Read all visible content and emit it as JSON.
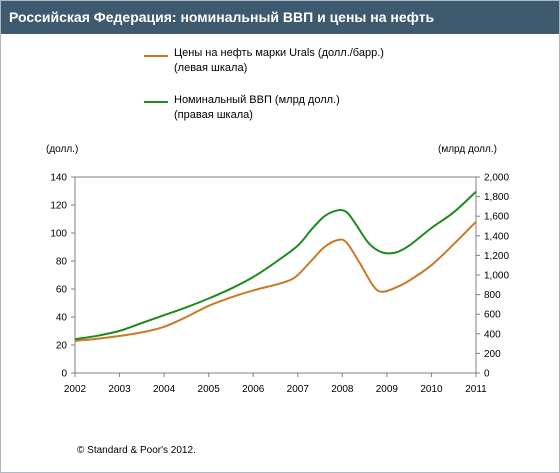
{
  "header": {
    "title": "Российская Федерация: номинальный ВВП и цены на нефть"
  },
  "legend": [
    {
      "line1": "Цены на нефть марки Urals (долл./барр.)",
      "line2": "(левая шкала)",
      "color": "#c87a29"
    },
    {
      "line1": "Номинальный ВВП (млрд долл.)",
      "line2": "(правая шкала)",
      "color": "#1f8a20"
    }
  ],
  "units": {
    "left": "(долл.)",
    "right": "(млрд долл.)"
  },
  "footer": {
    "copyright": "© Standard & Poor's 2012."
  },
  "chart_data": {
    "type": "line",
    "x_ticks": [
      "2002",
      "2003",
      "2004",
      "2005",
      "2006",
      "2007",
      "2008",
      "2009",
      "2010",
      "2011"
    ],
    "y_left": {
      "min": 0,
      "max": 140,
      "ticks": [
        "0",
        "20",
        "40",
        "60",
        "80",
        "100",
        "120",
        "140"
      ]
    },
    "y_right": {
      "min": 0,
      "max": 2000,
      "ticks": [
        "0",
        "200",
        "400",
        "600",
        "800",
        "1,000",
        "1,200",
        "1,400",
        "1,600",
        "1,800",
        "2,000"
      ]
    },
    "series": [
      {
        "name": "Цены на нефть марки Urals (долл./барр.)",
        "axis": "left",
        "color": "#c87a29",
        "points": [
          [
            2002.0,
            23
          ],
          [
            2002.5,
            24.5
          ],
          [
            2003.0,
            26.5
          ],
          [
            2003.5,
            29
          ],
          [
            2004.0,
            33
          ],
          [
            2004.5,
            40
          ],
          [
            2005.0,
            48
          ],
          [
            2005.5,
            54
          ],
          [
            2006.0,
            59
          ],
          [
            2006.5,
            63
          ],
          [
            2006.8,
            66
          ],
          [
            2007.0,
            70
          ],
          [
            2007.3,
            80
          ],
          [
            2007.6,
            90
          ],
          [
            2007.9,
            95
          ],
          [
            2008.1,
            93
          ],
          [
            2008.4,
            78
          ],
          [
            2008.7,
            62
          ],
          [
            2008.9,
            58
          ],
          [
            2009.2,
            61
          ],
          [
            2009.5,
            66
          ],
          [
            2010.0,
            77
          ],
          [
            2010.5,
            92
          ],
          [
            2011.0,
            108
          ]
        ]
      },
      {
        "name": "Номинальный ВВП (млрд долл.)",
        "axis": "right",
        "color": "#1f8a20",
        "points": [
          [
            2002.0,
            345
          ],
          [
            2002.5,
            380
          ],
          [
            2003.0,
            430
          ],
          [
            2003.5,
            510
          ],
          [
            2004.0,
            590
          ],
          [
            2004.5,
            670
          ],
          [
            2005.0,
            760
          ],
          [
            2005.5,
            860
          ],
          [
            2006.0,
            980
          ],
          [
            2006.5,
            1130
          ],
          [
            2007.0,
            1300
          ],
          [
            2007.3,
            1460
          ],
          [
            2007.6,
            1600
          ],
          [
            2007.9,
            1660
          ],
          [
            2008.1,
            1640
          ],
          [
            2008.3,
            1520
          ],
          [
            2008.6,
            1320
          ],
          [
            2008.9,
            1230
          ],
          [
            2009.2,
            1230
          ],
          [
            2009.5,
            1300
          ],
          [
            2010.0,
            1480
          ],
          [
            2010.5,
            1640
          ],
          [
            2011.0,
            1850
          ]
        ]
      }
    ]
  }
}
